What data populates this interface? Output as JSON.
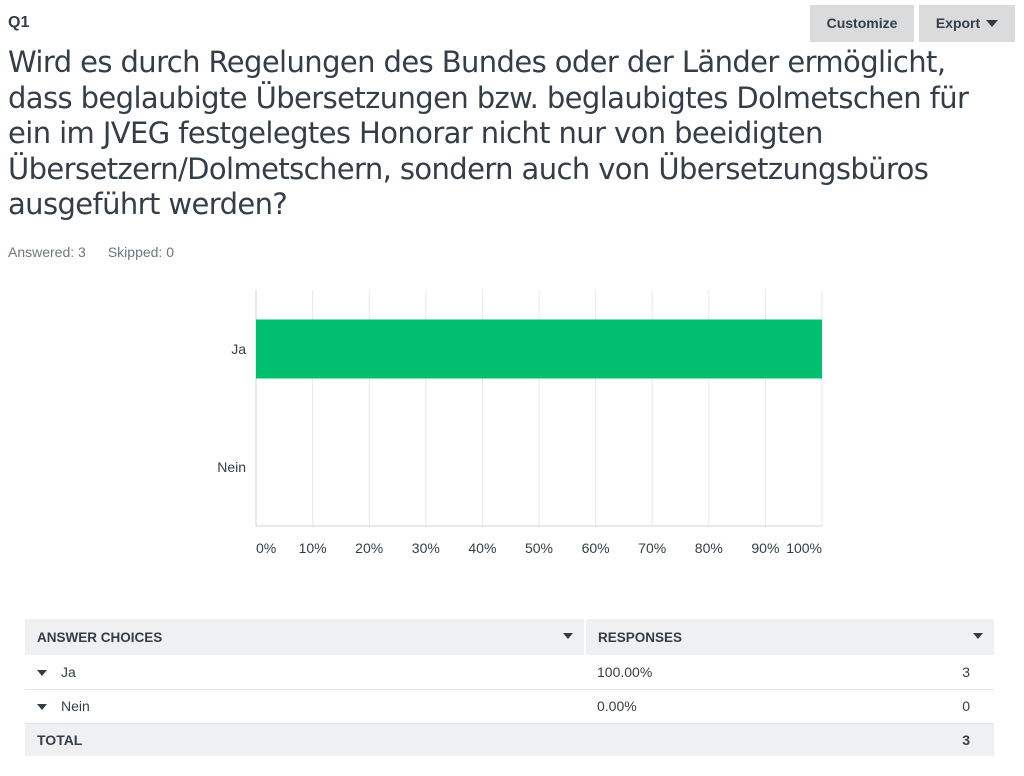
{
  "header": {
    "question_number": "Q1",
    "customize_label": "Customize",
    "export_label": "Export"
  },
  "question": {
    "text": "Wird es durch Regelungen des Bundes oder der Länder ermöglicht, dass beglaubigte Übersetzungen bzw. beglaubigtes Dolmetschen für ein im JVEG festgelegtes Honorar nicht nur von beeidigten Übersetzern/Dolmetschern, sondern auch von Übersetzungsbüros ausgeführt werden?"
  },
  "stats": {
    "answered": "Answered: 3",
    "skipped": "Skipped: 0"
  },
  "chart_data": {
    "type": "bar",
    "orientation": "horizontal",
    "categories": [
      "Ja",
      "Nein"
    ],
    "values": [
      100,
      0
    ],
    "x_ticks": [
      "0%",
      "10%",
      "20%",
      "30%",
      "40%",
      "50%",
      "60%",
      "70%",
      "80%",
      "90%",
      "100%"
    ],
    "xlim": [
      0,
      100
    ],
    "grid": true,
    "bar_color": "#00bf6f"
  },
  "table": {
    "headers": [
      "ANSWER CHOICES",
      "RESPONSES"
    ],
    "rows": [
      {
        "choice": "Ja",
        "percent": "100.00%",
        "count": "3"
      },
      {
        "choice": "Nein",
        "percent": "0.00%",
        "count": "0"
      }
    ],
    "total_label": "TOTAL",
    "total_count": "3"
  }
}
